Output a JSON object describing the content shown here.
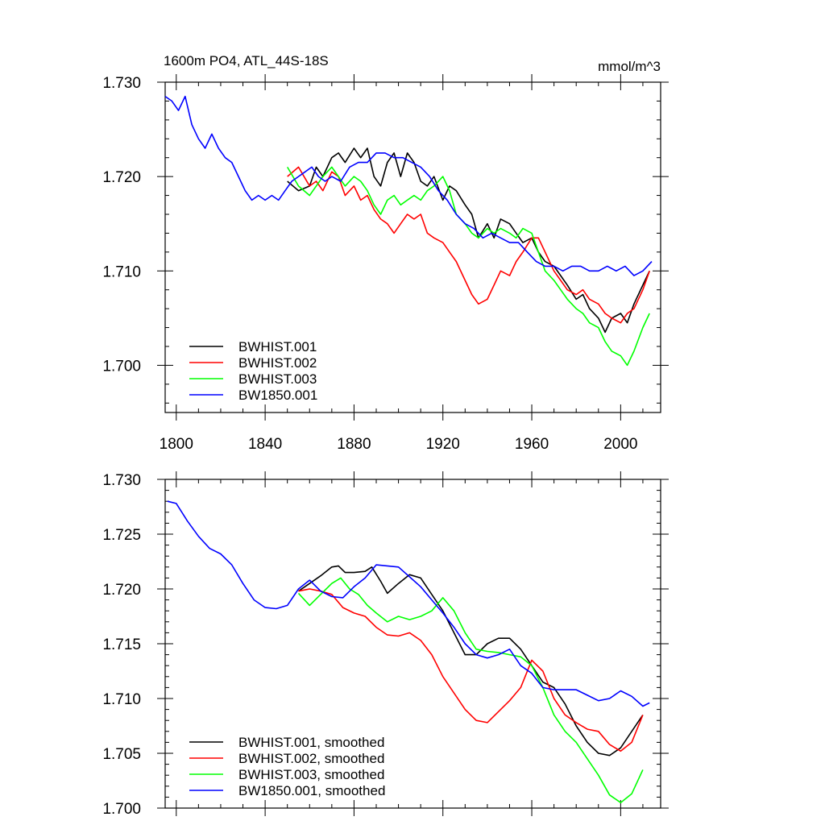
{
  "chart_data": [
    {
      "type": "line",
      "title": "1600m PO4, ATL_44S-18S",
      "units": "mmol/m^3",
      "xlabel": "",
      "ylabel": "",
      "xlim": [
        1795,
        2018
      ],
      "ylim": [
        1.695,
        1.73
      ],
      "xticks": [
        1800,
        1840,
        1880,
        1920,
        1960,
        2000
      ],
      "xtick_labels": [
        "1800",
        "1840",
        "1880",
        "1920",
        "1960",
        "2000"
      ],
      "yticks": [
        1.7,
        1.71,
        1.72,
        1.73
      ],
      "ytick_labels": [
        "1.700",
        "1.710",
        "1.720",
        "1.730"
      ],
      "grid": false,
      "legend_position": "bottom-left",
      "series": [
        {
          "name": "BWHIST.001",
          "color": "#000000",
          "x": [
            1850,
            1855,
            1860,
            1863,
            1866,
            1870,
            1873,
            1876,
            1880,
            1883,
            1886,
            1889,
            1892,
            1895,
            1898,
            1901,
            1904,
            1907,
            1910,
            1913,
            1916,
            1920,
            1923,
            1926,
            1930,
            1933,
            1936,
            1940,
            1943,
            1946,
            1950,
            1953,
            1956,
            1960,
            1963,
            1966,
            1970,
            1973,
            1976,
            1980,
            1983,
            1986,
            1990,
            1993,
            1996,
            2000,
            2003,
            2006,
            2010,
            2013
          ],
          "y": [
            1.7195,
            1.7185,
            1.719,
            1.721,
            1.72,
            1.722,
            1.7225,
            1.7215,
            1.723,
            1.722,
            1.723,
            1.72,
            1.719,
            1.7215,
            1.7225,
            1.72,
            1.7225,
            1.7215,
            1.7195,
            1.719,
            1.72,
            1.7175,
            1.719,
            1.7185,
            1.717,
            1.716,
            1.7135,
            1.715,
            1.7135,
            1.7155,
            1.715,
            1.714,
            1.713,
            1.7135,
            1.712,
            1.711,
            1.7105,
            1.7095,
            1.7085,
            1.707,
            1.7075,
            1.706,
            1.705,
            1.7035,
            1.705,
            1.7055,
            1.7045,
            1.7065,
            1.7085,
            1.71
          ]
        },
        {
          "name": "BWHIST.002",
          "color": "#ff0000",
          "x": [
            1850,
            1855,
            1860,
            1863,
            1866,
            1870,
            1873,
            1876,
            1880,
            1883,
            1886,
            1889,
            1892,
            1895,
            1898,
            1901,
            1904,
            1907,
            1910,
            1913,
            1916,
            1920,
            1923,
            1926,
            1930,
            1933,
            1936,
            1940,
            1943,
            1946,
            1950,
            1953,
            1956,
            1960,
            1963,
            1966,
            1970,
            1973,
            1976,
            1980,
            1983,
            1986,
            1990,
            1993,
            1996,
            2000,
            2003,
            2006,
            2010,
            2013
          ],
          "y": [
            1.72,
            1.721,
            1.719,
            1.7195,
            1.7185,
            1.7205,
            1.72,
            1.718,
            1.719,
            1.7175,
            1.718,
            1.7165,
            1.7155,
            1.715,
            1.714,
            1.715,
            1.716,
            1.7155,
            1.716,
            1.714,
            1.7135,
            1.713,
            1.712,
            1.711,
            1.709,
            1.7075,
            1.7065,
            1.707,
            1.7085,
            1.71,
            1.7095,
            1.711,
            1.712,
            1.7135,
            1.7135,
            1.712,
            1.71,
            1.709,
            1.708,
            1.7075,
            1.708,
            1.707,
            1.7065,
            1.7055,
            1.705,
            1.7045,
            1.7055,
            1.706,
            1.708,
            1.71
          ]
        },
        {
          "name": "BWHIST.003",
          "color": "#00ff00",
          "x": [
            1850,
            1855,
            1860,
            1863,
            1866,
            1870,
            1873,
            1876,
            1880,
            1883,
            1886,
            1889,
            1892,
            1895,
            1898,
            1901,
            1904,
            1907,
            1910,
            1913,
            1916,
            1920,
            1923,
            1926,
            1930,
            1933,
            1936,
            1940,
            1943,
            1946,
            1950,
            1953,
            1956,
            1960,
            1963,
            1966,
            1970,
            1973,
            1976,
            1980,
            1983,
            1986,
            1990,
            1993,
            1996,
            2000,
            2003,
            2006,
            2010,
            2013
          ],
          "y": [
            1.721,
            1.719,
            1.718,
            1.719,
            1.72,
            1.721,
            1.72,
            1.719,
            1.72,
            1.7195,
            1.7185,
            1.717,
            1.716,
            1.7175,
            1.718,
            1.717,
            1.7175,
            1.718,
            1.7175,
            1.7185,
            1.719,
            1.72,
            1.7185,
            1.716,
            1.715,
            1.714,
            1.7135,
            1.7145,
            1.714,
            1.7145,
            1.714,
            1.7135,
            1.7145,
            1.714,
            1.712,
            1.71,
            1.709,
            1.708,
            1.707,
            1.706,
            1.7055,
            1.7045,
            1.704,
            1.7025,
            1.7015,
            1.701,
            1.7,
            1.7015,
            1.704,
            1.7055
          ]
        },
        {
          "name": "BW1850.001",
          "color": "#0000ff",
          "x": [
            1795,
            1798,
            1801,
            1804,
            1807,
            1810,
            1813,
            1816,
            1819,
            1822,
            1825,
            1828,
            1831,
            1834,
            1837,
            1840,
            1843,
            1846,
            1849,
            1852,
            1855,
            1858,
            1861,
            1864,
            1867,
            1870,
            1874,
            1878,
            1882,
            1886,
            1890,
            1894,
            1898,
            1902,
            1906,
            1910,
            1914,
            1918,
            1922,
            1926,
            1930,
            1934,
            1938,
            1942,
            1946,
            1950,
            1954,
            1958,
            1962,
            1966,
            1970,
            1974,
            1978,
            1982,
            1986,
            1990,
            1994,
            1998,
            2002,
            2006,
            2010,
            2014
          ],
          "y": [
            1.7285,
            1.728,
            1.727,
            1.7285,
            1.7255,
            1.724,
            1.723,
            1.7245,
            1.723,
            1.722,
            1.7215,
            1.72,
            1.7185,
            1.7175,
            1.718,
            1.7175,
            1.718,
            1.7175,
            1.7185,
            1.7195,
            1.72,
            1.7205,
            1.721,
            1.72,
            1.7195,
            1.72,
            1.7195,
            1.721,
            1.7215,
            1.7215,
            1.7225,
            1.7225,
            1.722,
            1.722,
            1.7215,
            1.721,
            1.72,
            1.7185,
            1.7175,
            1.716,
            1.715,
            1.7145,
            1.7135,
            1.714,
            1.7135,
            1.713,
            1.713,
            1.712,
            1.711,
            1.7105,
            1.7105,
            1.71,
            1.7105,
            1.7105,
            1.71,
            1.71,
            1.7105,
            1.71,
            1.7105,
            1.7095,
            1.71,
            1.711
          ]
        }
      ]
    },
    {
      "type": "line",
      "title": "",
      "xlabel": "",
      "ylabel": "",
      "xlim": [
        1795,
        2018
      ],
      "ylim": [
        1.7,
        1.73
      ],
      "xticks": [
        1800,
        1840,
        1880,
        1920,
        1960,
        2000
      ],
      "yticks": [
        1.7,
        1.705,
        1.71,
        1.715,
        1.72,
        1.725,
        1.73
      ],
      "ytick_labels": [
        "1.700",
        "1.705",
        "1.710",
        "1.715",
        "1.720",
        "1.725",
        "1.730"
      ],
      "grid": false,
      "legend_position": "bottom-left",
      "series": [
        {
          "name": "BWHIST.001, smoothed",
          "color": "#000000",
          "x": [
            1855,
            1860,
            1865,
            1870,
            1873,
            1876,
            1880,
            1885,
            1888,
            1892,
            1895,
            1900,
            1905,
            1910,
            1915,
            1920,
            1925,
            1930,
            1935,
            1940,
            1945,
            1950,
            1955,
            1960,
            1965,
            1970,
            1975,
            1980,
            1985,
            1990,
            1995,
            2000,
            2005,
            2010
          ],
          "y": [
            1.7198,
            1.7205,
            1.7212,
            1.722,
            1.7221,
            1.7215,
            1.7215,
            1.7216,
            1.722,
            1.7207,
            1.7196,
            1.7205,
            1.7213,
            1.721,
            1.7195,
            1.718,
            1.716,
            1.714,
            1.714,
            1.715,
            1.7155,
            1.7155,
            1.7145,
            1.713,
            1.7115,
            1.711,
            1.7095,
            1.7075,
            1.706,
            1.705,
            1.7048,
            1.7055,
            1.707,
            1.7085
          ]
        },
        {
          "name": "BWHIST.002, smoothed",
          "color": "#ff0000",
          "x": [
            1855,
            1860,
            1865,
            1870,
            1875,
            1880,
            1885,
            1890,
            1895,
            1900,
            1905,
            1910,
            1915,
            1920,
            1925,
            1930,
            1935,
            1940,
            1945,
            1950,
            1955,
            1960,
            1965,
            1970,
            1975,
            1980,
            1985,
            1990,
            1995,
            2000,
            2005,
            2010
          ],
          "y": [
            1.7198,
            1.72,
            1.7198,
            1.7195,
            1.7183,
            1.7178,
            1.7175,
            1.7165,
            1.7158,
            1.7157,
            1.716,
            1.7153,
            1.714,
            1.712,
            1.7105,
            1.709,
            1.708,
            1.7078,
            1.7088,
            1.7098,
            1.711,
            1.7135,
            1.7125,
            1.71,
            1.7085,
            1.7078,
            1.7072,
            1.707,
            1.7058,
            1.7052,
            1.706,
            1.7085
          ]
        },
        {
          "name": "BWHIST.003, smoothed",
          "color": "#00ff00",
          "x": [
            1855,
            1860,
            1865,
            1870,
            1874,
            1878,
            1882,
            1886,
            1890,
            1895,
            1900,
            1905,
            1910,
            1915,
            1920,
            1925,
            1930,
            1935,
            1940,
            1945,
            1950,
            1955,
            1960,
            1965,
            1970,
            1975,
            1980,
            1985,
            1990,
            1995,
            2000,
            2005,
            2010
          ],
          "y": [
            1.7196,
            1.7185,
            1.7195,
            1.7205,
            1.721,
            1.72,
            1.7195,
            1.7185,
            1.7178,
            1.717,
            1.7175,
            1.7172,
            1.7175,
            1.718,
            1.7192,
            1.718,
            1.716,
            1.7145,
            1.7143,
            1.7142,
            1.714,
            1.7138,
            1.713,
            1.711,
            1.7085,
            1.707,
            1.706,
            1.7045,
            1.703,
            1.7012,
            1.7005,
            1.7013,
            1.7035
          ]
        },
        {
          "name": "BW1850.001, smoothed",
          "color": "#0000ff",
          "x": [
            1796,
            1800,
            1805,
            1810,
            1815,
            1820,
            1825,
            1830,
            1835,
            1840,
            1845,
            1850,
            1855,
            1860,
            1865,
            1870,
            1875,
            1880,
            1885,
            1890,
            1895,
            1900,
            1905,
            1910,
            1915,
            1920,
            1925,
            1930,
            1935,
            1940,
            1945,
            1950,
            1955,
            1960,
            1965,
            1970,
            1975,
            1980,
            1985,
            1990,
            1995,
            2000,
            2005,
            2010,
            2013
          ],
          "y": [
            1.728,
            1.7278,
            1.7262,
            1.7248,
            1.7237,
            1.7232,
            1.7222,
            1.7205,
            1.719,
            1.7183,
            1.7182,
            1.7185,
            1.72,
            1.7208,
            1.7198,
            1.7193,
            1.7192,
            1.7202,
            1.721,
            1.7222,
            1.7221,
            1.722,
            1.7211,
            1.7202,
            1.719,
            1.7178,
            1.7165,
            1.715,
            1.714,
            1.7137,
            1.714,
            1.7145,
            1.713,
            1.7123,
            1.711,
            1.7108,
            1.7108,
            1.7108,
            1.7103,
            1.7098,
            1.71,
            1.7107,
            1.7102,
            1.7093,
            1.7096
          ]
        }
      ]
    }
  ]
}
